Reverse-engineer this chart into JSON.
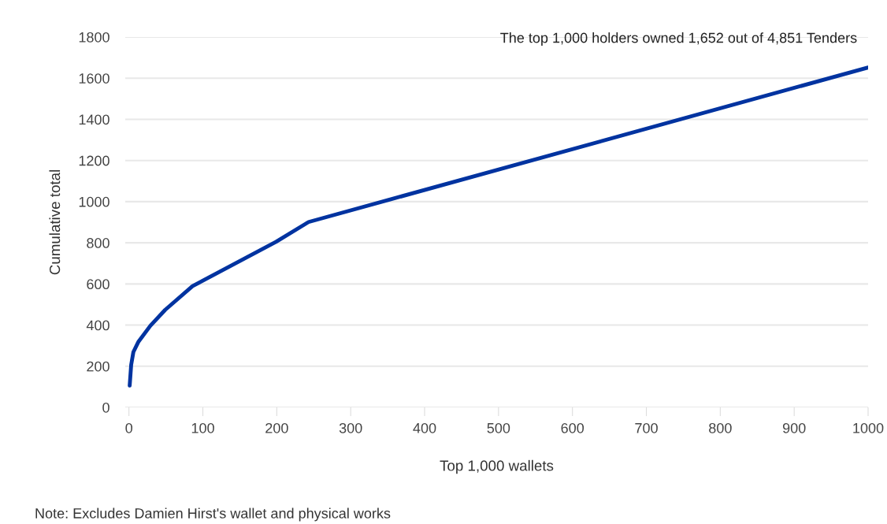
{
  "chart_data": {
    "type": "line",
    "xlabel": "Top 1,000 wallets",
    "ylabel": "Cumulative total",
    "x": [
      1,
      3,
      6,
      13,
      29,
      49,
      86,
      199,
      243,
      1000
    ],
    "series": [
      {
        "color": "#0033a0",
        "values": [
          106,
          206,
          269,
          320,
          397,
          474,
          589,
          805,
          901,
          1652
        ]
      }
    ],
    "xlim": [
      -5,
      1000
    ],
    "xticks": [
      0,
      100,
      200,
      300,
      400,
      500,
      600,
      700,
      800,
      900,
      1000
    ],
    "ylim": [
      0,
      1800
    ],
    "yticks": [
      0,
      200,
      400,
      600,
      800,
      1000,
      1200,
      1400,
      1600,
      1800
    ],
    "grid": "y",
    "legend": false,
    "marker": "none",
    "line_style": "solid",
    "annotations": [
      {
        "text": "The top 1,000 holders owned 1,652 out of 4,851 Tenders",
        "x": 1000,
        "y": 1652
      },
      "Note: Excludes Damien Hirst's wallet and physical works"
    ]
  }
}
